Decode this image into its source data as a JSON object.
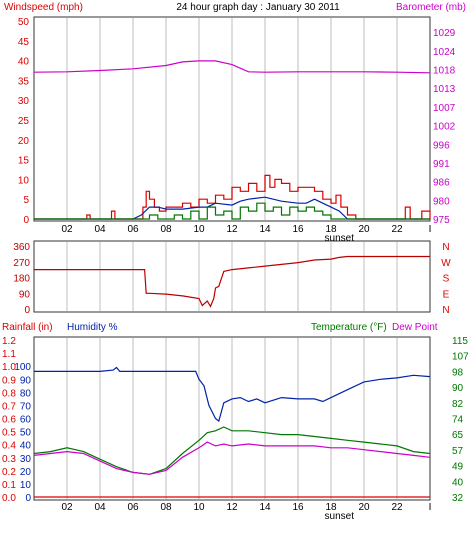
{
  "header": {
    "title": "24 hour graph day : January 30 2011",
    "left_label": "Windspeed (mph)",
    "right_label": "Barometer (mb)"
  },
  "colors": {
    "red": "#dd0000",
    "blue": "#0022aa",
    "green": "#007700",
    "magenta": "#cc00cc",
    "darkred": "#bb0000",
    "grid": "#d4d4d4"
  },
  "x_axis": {
    "ticks": [
      "02",
      "04",
      "06",
      "08",
      "10",
      "12",
      "14",
      "16",
      "18",
      "20",
      "22",
      "I"
    ],
    "sunset_label": "sunset",
    "sunset_hour": 18.5
  },
  "chart_data": [
    {
      "type": "line",
      "name": "wind-barometer",
      "title": "24 hour graph day : January 30 2011",
      "ylabel": "Windspeed (mph)",
      "y2label": "Barometer (mb)",
      "ylim": [
        0,
        50
      ],
      "y2lim": [
        975,
        1035
      ],
      "y_ticks": [
        "0",
        "5",
        "10",
        "15",
        "20",
        "25",
        "30",
        "35",
        "40",
        "45",
        "50"
      ],
      "y2_ticks": [
        "975",
        "980",
        "986",
        "991",
        "996",
        "1002",
        "1007",
        "1013",
        "1018",
        "1024",
        "1029"
      ],
      "series": [
        {
          "key": "barometer",
          "axis": "right",
          "x": [
            0,
            2,
            4,
            6,
            8,
            9,
            10,
            11,
            12,
            13,
            14,
            16,
            18,
            20,
            22,
            24
          ],
          "y": [
            1019.5,
            1019.6,
            1020.0,
            1020.5,
            1021.5,
            1022.6,
            1022.9,
            1022.9,
            1021.8,
            1019.6,
            1019.5,
            1019.6,
            1019.6,
            1019.6,
            1019.5,
            1019.3
          ]
        },
        {
          "key": "gust",
          "axis": "left",
          "x": [
            0,
            3,
            3.2,
            3.4,
            4.5,
            4.7,
            4.9,
            6,
            6.6,
            6.8,
            7,
            7.3,
            7.6,
            8,
            8.5,
            9,
            9.5,
            10,
            10.5,
            11,
            11.5,
            12,
            12.5,
            13,
            13.5,
            14,
            14.3,
            14.6,
            15,
            15.5,
            16,
            16.5,
            17,
            17.5,
            18,
            18.3,
            18.6,
            19,
            19.5,
            20,
            21,
            22.3,
            22.5,
            22.8,
            23.5,
            24
          ],
          "y": [
            0,
            0,
            1,
            0,
            0,
            2,
            0,
            0,
            3,
            7,
            5,
            3,
            2,
            3,
            3,
            4,
            3,
            5,
            4,
            6,
            5,
            8,
            7,
            9,
            7,
            11,
            8,
            10,
            9,
            7,
            8,
            8,
            7,
            5,
            4,
            6,
            3,
            1,
            0,
            0,
            0,
            0,
            3,
            0,
            2,
            0
          ]
        },
        {
          "key": "avg-wind",
          "axis": "left",
          "x": [
            0,
            6,
            6.5,
            7,
            7.5,
            8,
            9,
            10,
            10.5,
            11,
            12,
            12.5,
            13,
            14,
            15,
            16,
            16.5,
            17,
            17.5,
            18,
            18.5,
            19,
            20,
            24
          ],
          "y": [
            0,
            0,
            1,
            3,
            3,
            2.5,
            2.5,
            3,
            3,
            4,
            3.5,
            4.5,
            5,
            5.5,
            4.5,
            4,
            4,
            5,
            4,
            3,
            2,
            0,
            0,
            0
          ]
        },
        {
          "key": "min-wind",
          "axis": "left",
          "x": [
            0,
            6.5,
            7,
            7.5,
            8,
            8.5,
            9,
            9.5,
            10,
            10.5,
            11,
            11.5,
            12,
            12.5,
            13,
            13.5,
            14,
            14.5,
            15,
            15.5,
            16,
            16.5,
            17,
            17.5,
            18,
            18.5,
            24
          ],
          "y": [
            0,
            0,
            1,
            0,
            0,
            1,
            0,
            2,
            0,
            3,
            1,
            2,
            0,
            3,
            2,
            4,
            2,
            3,
            1,
            3,
            2,
            3,
            2,
            1,
            0,
            0,
            0
          ]
        }
      ]
    },
    {
      "type": "line",
      "name": "wind-direction",
      "ylim": [
        0,
        360
      ],
      "y_ticks": [
        "0",
        "90",
        "180",
        "270",
        "360"
      ],
      "y2_ticks": [
        "N",
        "W",
        "S",
        "E",
        "N"
      ],
      "series": [
        {
          "key": "direction",
          "x": [
            0,
            6.7,
            6.8,
            7,
            8,
            9,
            10,
            10.2,
            10.5,
            10.7,
            10.9,
            11.0,
            11.2,
            11.5,
            12,
            13,
            14,
            15,
            16,
            17,
            18,
            18.5,
            19,
            24
          ],
          "y": [
            225,
            225,
            90,
            90,
            85,
            75,
            60,
            20,
            45,
            15,
            60,
            120,
            130,
            215,
            225,
            235,
            245,
            255,
            265,
            280,
            285,
            295,
            300,
            300
          ]
        }
      ]
    },
    {
      "type": "line",
      "name": "rain-humidity-temperature",
      "ylabel": "Rainfall (in)",
      "y3label": "Humidity %",
      "y2label": "Temperature (°F)",
      "y4label": "Dew Point",
      "ylim": [
        0,
        1.2
      ],
      "y2lim": [
        32,
        115
      ],
      "y_ticks_humidity": [
        "0",
        "10",
        "20",
        "30",
        "40",
        "50",
        "60",
        "70",
        "80",
        "90",
        "100"
      ],
      "y_ticks_rain": [
        "0.0",
        "0.1",
        "0.2",
        "0.3",
        "0.4",
        "0.5",
        "0.6",
        "0.7",
        "0.8",
        "0.9",
        "1.0",
        "1.1",
        "1.2"
      ],
      "y2_ticks": [
        "32",
        "40",
        "49",
        "57",
        "65",
        "74",
        "82",
        "90",
        "98",
        "107",
        "115"
      ],
      "series": [
        {
          "key": "rainfall",
          "axis": "rain",
          "x": [
            0,
            24
          ],
          "y": [
            0,
            0
          ]
        },
        {
          "key": "humidity",
          "axis": "humidity",
          "x": [
            0,
            2,
            4,
            4.8,
            5,
            5.2,
            6,
            8,
            9,
            9.8,
            10,
            10.3,
            10.6,
            11,
            11.2,
            11.5,
            12,
            12.5,
            13,
            13.5,
            14,
            14.5,
            15,
            16,
            17,
            17.5,
            18,
            19,
            20,
            21,
            22,
            23,
            24
          ],
          "y": [
            96,
            96,
            96,
            97,
            99,
            96,
            96,
            96,
            96,
            96,
            90,
            85,
            70,
            60,
            58,
            72,
            75,
            76,
            73,
            75,
            72,
            74,
            76,
            75,
            75,
            73,
            76,
            82,
            88,
            90,
            91,
            93,
            92
          ]
        },
        {
          "key": "temperature",
          "axis": "temp",
          "x": [
            0,
            1,
            2,
            3,
            4,
            5,
            6,
            7,
            8,
            9,
            10,
            10.5,
            11,
            11.5,
            12,
            13,
            14,
            15,
            16,
            17,
            18,
            19,
            20,
            21,
            22,
            23,
            24
          ],
          "y": [
            55,
            56,
            58,
            56,
            52,
            48,
            45,
            44,
            47,
            55,
            62,
            66,
            67,
            69,
            67,
            67,
            66,
            65,
            65,
            64,
            63,
            62,
            61,
            60,
            59,
            56,
            55
          ]
        },
        {
          "key": "dewpoint",
          "axis": "temp",
          "x": [
            0,
            1,
            2,
            3,
            4,
            5,
            6,
            7,
            8,
            9,
            10,
            10.5,
            11,
            11.5,
            12,
            13,
            14,
            15,
            16,
            17,
            18,
            19,
            20,
            21,
            22,
            23,
            24
          ],
          "y": [
            54,
            55,
            56,
            55,
            51,
            47,
            45,
            44,
            46,
            53,
            58,
            61,
            59,
            60,
            59,
            60,
            59,
            59,
            59,
            59,
            58,
            58,
            57,
            56,
            55,
            54,
            53
          ]
        }
      ]
    }
  ],
  "panel3_labels": {
    "rain": "Rainfall (in)",
    "humidity": "Humidity %",
    "temp": "Temperature (°F)",
    "dew": "Dew Point"
  }
}
